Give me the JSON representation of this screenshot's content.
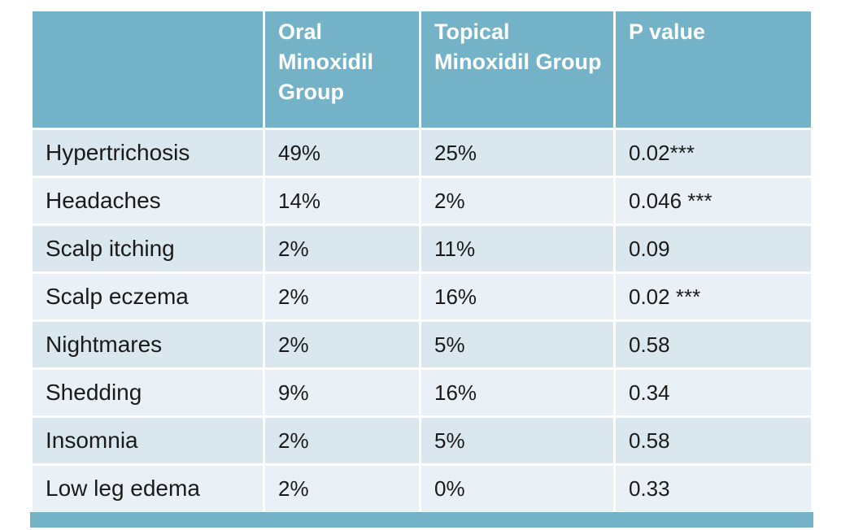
{
  "colors": {
    "header_bg": "#74b2c7",
    "header_text": "#ffffff",
    "row_odd_bg": "#dbe7ee",
    "row_even_bg": "#eaf1f6",
    "body_text": "#1a1a1a",
    "canvas_bg": "#ffffff",
    "accent_bar": "#74b2c7"
  },
  "table": {
    "headers": {
      "corner": "",
      "oral": "Oral Minoxidil Group",
      "topical": "Topical Minoxidil Group",
      "p_value": "P value"
    },
    "rows": [
      {
        "label": "Hypertrichosis",
        "oral": "49%",
        "topical": "25%",
        "p_value": "0.02***"
      },
      {
        "label": "Headaches",
        "oral": "14%",
        "topical": "2%",
        "p_value": "0.046 ***"
      },
      {
        "label": "Scalp itching",
        "oral": "2%",
        "topical": "11%",
        "p_value": "0.09"
      },
      {
        "label": "Scalp eczema",
        "oral": "2%",
        "topical": "16%",
        "p_value": "0.02 ***"
      },
      {
        "label": "Nightmares",
        "oral": "2%",
        "topical": "5%",
        "p_value": "0.58"
      },
      {
        "label": "Shedding",
        "oral": "9%",
        "topical": "16%",
        "p_value": "0.34"
      },
      {
        "label": "Insomnia",
        "oral": "2%",
        "topical": "5%",
        "p_value": "0.58"
      },
      {
        "label": "Low leg edema",
        "oral": "2%",
        "topical": "0%",
        "p_value": "0.33"
      }
    ]
  },
  "chart_data": {
    "type": "table",
    "title": "",
    "columns": [
      "",
      "Oral Minoxidil Group",
      "Topical Minoxidil Group",
      "P value"
    ],
    "rows": [
      [
        "Hypertrichosis",
        "49%",
        "25%",
        "0.02***"
      ],
      [
        "Headaches",
        "14%",
        "2%",
        "0.046 ***"
      ],
      [
        "Scalp itching",
        "2%",
        "11%",
        "0.09"
      ],
      [
        "Scalp eczema",
        "2%",
        "16%",
        "0.02 ***"
      ],
      [
        "Nightmares",
        "2%",
        "5%",
        "0.58"
      ],
      [
        "Shedding",
        "9%",
        "16%",
        "0.34"
      ],
      [
        "Insomnia",
        "2%",
        "5%",
        "0.58"
      ],
      [
        "Low leg edema",
        "2%",
        "0%",
        "0.33"
      ]
    ],
    "layout": {
      "header_band": true,
      "banded_rows": true,
      "bottom_accent_bar": true
    }
  }
}
